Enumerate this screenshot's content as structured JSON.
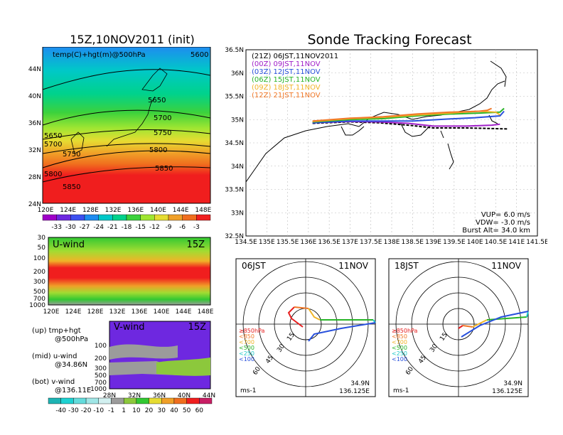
{
  "left_title": "15Z,10NOV2011 (init)",
  "right_title": "Sonde Tracking Forecast",
  "map500": {
    "label": "temp(C)+hgt(m)@500hPa",
    "contours": [
      "5600",
      "5650",
      "5700",
      "5750",
      "5800",
      "5850",
      "5650",
      "5700",
      "5750",
      "5800",
      "5850"
    ],
    "xticks": [
      "120E",
      "124E",
      "128E",
      "132E",
      "136E",
      "140E",
      "144E",
      "148E"
    ],
    "yticks": [
      "44N",
      "40N",
      "36N",
      "32N",
      "28N",
      "24N"
    ]
  },
  "temp_colorbar": [
    "-33",
    "-30",
    "-27",
    "-24",
    "-21",
    "-18",
    "-15",
    "-12",
    "-9",
    "-6",
    "-3"
  ],
  "temp_colors": [
    "#a000c8",
    "#6e28e0",
    "#3c50f0",
    "#1e8cf0",
    "#00c8c8",
    "#00d28c",
    "#3cd23c",
    "#a0e632",
    "#e6dc32",
    "#f0a028",
    "#f06e1e",
    "#f01e1e"
  ],
  "uwind": {
    "label": "U-wind",
    "time": "15Z",
    "yticks": [
      "30",
      "50",
      "100",
      "200",
      "300",
      "500",
      "700",
      "1000"
    ],
    "xticks": [
      "120E",
      "124E",
      "128E",
      "132E",
      "136E",
      "140E",
      "144E",
      "148E"
    ]
  },
  "vwind": {
    "label": "V-wind",
    "time": "15Z",
    "yticks": [
      "100",
      "200",
      "300",
      "500",
      "700",
      "1000"
    ],
    "xticks": [
      "28N",
      "32N",
      "36N",
      "40N",
      "44N"
    ]
  },
  "wind_colorbar": [
    "-40",
    "-30",
    "-20",
    "-10",
    "-1",
    "1",
    "10",
    "20",
    "30",
    "40",
    "50",
    "60"
  ],
  "wind_colors": [
    "#1eb4b4",
    "#1ed2d2",
    "#64dcdc",
    "#a0e6e6",
    "#d2f0f0",
    "#9b9b9b",
    "#8cc83c",
    "#32c832",
    "#e6dc32",
    "#f0a028",
    "#f06e1e",
    "#f01e1e",
    "#c81e64"
  ],
  "notes": [
    {
      "line1": "(up) tmp+hgt",
      "line2": "@500hPa"
    },
    {
      "line1": "(mid) u-wind",
      "line2": "@34.86N"
    },
    {
      "line1": "(bot) v-wind",
      "line2": "@136.11E"
    }
  ],
  "track_map": {
    "legend": [
      {
        "text": "(21Z)  06JST,11NOV2011",
        "color": "#000000"
      },
      {
        "text": "(00Z)  09JST,11NOV",
        "color": "#a020c8"
      },
      {
        "text": "(03Z)  12JST,11NOV",
        "color": "#2850dc"
      },
      {
        "text": "(06Z)  15JST,11NOV",
        "color": "#28b428"
      },
      {
        "text": "(09Z)  18JST,11NOV",
        "color": "#f0b428"
      },
      {
        "text": "(12Z)  21JST,11NOV",
        "color": "#f07828"
      }
    ],
    "xticks": [
      "134.5E",
      "135E",
      "135.5E",
      "136E",
      "136.5E",
      "137E",
      "137.5E",
      "138E",
      "138.5E",
      "139E",
      "139.5E",
      "140E",
      "140.5E",
      "141E",
      "141.5E"
    ],
    "yticks": [
      "36.5N",
      "36N",
      "35.5N",
      "35N",
      "34.5N",
      "34N",
      "33.5N",
      "33N",
      "32.5N"
    ],
    "params": [
      "VUP=  6.0  m/s",
      "VDW= -3.0  m/s",
      "Burst Alt=  34.0  km"
    ]
  },
  "polar_left": {
    "time": "06JST",
    "date": "11NOV",
    "rings": [
      "15",
      "30",
      "45",
      "60"
    ],
    "levels": [
      {
        "text": "≥850hPa",
        "color": "#e61e1e"
      },
      {
        "text": "<850",
        "color": "#f07828"
      },
      {
        "text": "<700",
        "color": "#f0b428"
      },
      {
        "text": "<500",
        "color": "#28b428"
      },
      {
        "text": "<250",
        "color": "#1ec8c8"
      },
      {
        "text": "<100",
        "color": "#2850dc"
      }
    ],
    "unit": "ms-1",
    "lat": "34.9N",
    "lon": "136.125E"
  },
  "polar_right": {
    "time": "18JST",
    "date": "11NOV",
    "rings": [
      "15",
      "30",
      "45",
      "60"
    ],
    "levels": [
      {
        "text": "≥850hPa",
        "color": "#e61e1e"
      },
      {
        "text": "<850",
        "color": "#f07828"
      },
      {
        "text": "<700",
        "color": "#f0b428"
      },
      {
        "text": "<500",
        "color": "#28b428"
      },
      {
        "text": "<250",
        "color": "#1ec8c8"
      },
      {
        "text": "<100",
        "color": "#2850dc"
      }
    ],
    "unit": "ms-1",
    "lat": "34.9N",
    "lon": "136.125E"
  },
  "chart_data": [
    {
      "type": "heatmap",
      "title": "15Z,10NOV2011 (init)",
      "subtitle": "temp(C)+hgt(m)@500hPa",
      "xlim": [
        "120E",
        "149E"
      ],
      "ylim": [
        "22N",
        "47N"
      ],
      "contour_levels_m": [
        5600,
        5650,
        5700,
        5750,
        5800,
        5850
      ],
      "colorbar": [
        -33,
        -30,
        -27,
        -24,
        -21,
        -18,
        -15,
        -12,
        -9,
        -6,
        -3
      ]
    },
    {
      "type": "heatmap",
      "title": "U-wind",
      "y_levels_hPa": [
        30,
        50,
        100,
        200,
        300,
        500,
        700,
        1000
      ],
      "x": [
        "120E",
        "124E",
        "128E",
        "132E",
        "136E",
        "140E",
        "144E",
        "148E"
      ]
    },
    {
      "type": "heatmap",
      "title": "V-wind",
      "y_levels_hPa": [
        100,
        200,
        300,
        500,
        700,
        1000
      ],
      "x": [
        "28N",
        "32N",
        "36N",
        "40N",
        "44N"
      ],
      "colorbar": [
        -40,
        -30,
        -20,
        -10,
        -1,
        1,
        10,
        20,
        30,
        40,
        50,
        60
      ]
    },
    {
      "type": "line",
      "title": "Sonde Tracking Forecast",
      "xlim": [
        134.5,
        141.5
      ],
      "ylim": [
        32.5,
        36.5
      ],
      "launch": {
        "lon": 136.125,
        "lat": 34.9
      },
      "series": [
        {
          "name": "(21Z)  06JST,11NOV2011",
          "lon": [
            136.1,
            137.0,
            137.7,
            138.4,
            139.0,
            139.8,
            140.3,
            140.8
          ],
          "lat": [
            34.92,
            34.95,
            34.93,
            34.88,
            34.82,
            34.82,
            34.81,
            34.8
          ]
        },
        {
          "name": "(00Z)  09JST,11NOV",
          "lon": [
            136.1,
            137.0,
            137.7,
            138.4,
            139.0,
            139.8,
            140.4,
            140.6
          ],
          "lat": [
            34.93,
            34.96,
            34.95,
            34.92,
            34.86,
            34.86,
            34.88,
            34.9
          ]
        },
        {
          "name": "(03Z)  12JST,11NOV",
          "lon": [
            136.1,
            137.0,
            137.8,
            138.5,
            139.3,
            140.0,
            140.6,
            140.7
          ],
          "lat": [
            34.93,
            34.97,
            34.97,
            34.97,
            35.01,
            35.04,
            35.08,
            35.18
          ]
        },
        {
          "name": "(06Z)  15JST,11NOV",
          "lon": [
            136.1,
            137.0,
            137.8,
            138.6,
            139.4,
            140.1,
            140.6,
            140.7
          ],
          "lat": [
            34.95,
            35.0,
            35.02,
            35.08,
            35.12,
            35.14,
            35.16,
            35.24
          ]
        },
        {
          "name": "(09Z)  18JST,11NOV",
          "lon": [
            136.1,
            137.0,
            137.8,
            138.6,
            139.4,
            140.1,
            140.5,
            140.6
          ],
          "lat": [
            34.96,
            35.02,
            35.05,
            35.1,
            35.14,
            35.18,
            35.16,
            35.1
          ]
        },
        {
          "name": "(12Z)  21JST,11NOV",
          "lon": [
            136.1,
            137.0,
            137.8,
            138.6,
            139.4,
            140.1,
            140.3,
            140.4
          ],
          "lat": [
            34.97,
            35.03,
            35.06,
            35.12,
            35.16,
            35.18,
            35.2,
            35.24
          ]
        }
      ]
    }
  ]
}
